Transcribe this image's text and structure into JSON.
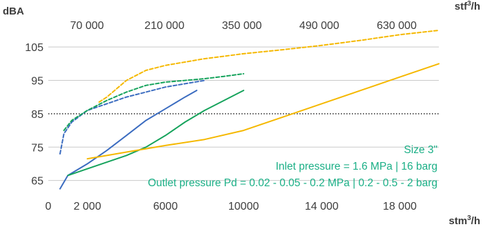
{
  "chart_data": {
    "type": "line",
    "title": "",
    "y_unit": "dBA",
    "x_unit": "stm",
    "x_unit_sup": "3",
    "x_unit_suffix": "/h",
    "x2_unit": "stf",
    "x2_unit_sup": "3",
    "x2_unit_suffix": "/h",
    "xlim": [
      0,
      20000
    ],
    "ylim": [
      61,
      110
    ],
    "x_ticks": [
      0,
      2000,
      6000,
      10000,
      14000,
      18000
    ],
    "x_tick_labels": [
      "0",
      "2 000",
      "6000",
      "10000",
      "14 000",
      "18 000"
    ],
    "y_ticks": [
      65,
      75,
      85,
      95,
      105
    ],
    "y_tick_labels": [
      "65",
      "75",
      "85",
      "95",
      "105"
    ],
    "x2_ticks": [
      70000,
      210000,
      350000,
      490000,
      630000
    ],
    "x2_tick_labels": [
      "70 000",
      "210 000",
      "350 000",
      "490 000",
      "630 000"
    ],
    "x2_per_x": 35.31,
    "grid": "horizontal",
    "reference_line": {
      "y": 85,
      "style": "dotted",
      "color": "#111111"
    },
    "series": [
      {
        "color": "#3b6cc0",
        "dash": false,
        "points": [
          [
            600,
            62.5
          ],
          [
            1000,
            66.5
          ],
          [
            2000,
            70
          ],
          [
            3000,
            74
          ],
          [
            4000,
            78.5
          ],
          [
            5000,
            83
          ],
          [
            6000,
            86.5
          ],
          [
            7000,
            90
          ],
          [
            7600,
            92
          ]
        ]
      },
      {
        "color": "#16a35c",
        "dash": false,
        "points": [
          [
            1000,
            66.5
          ],
          [
            2000,
            68.5
          ],
          [
            3000,
            70.5
          ],
          [
            4000,
            72.5
          ],
          [
            5000,
            75
          ],
          [
            6000,
            78.5
          ],
          [
            7000,
            82.5
          ],
          [
            8000,
            86
          ],
          [
            9000,
            89
          ],
          [
            10000,
            92
          ]
        ]
      },
      {
        "color": "#f5b800",
        "dash": false,
        "points": [
          [
            2000,
            71.5
          ],
          [
            3000,
            72.5
          ],
          [
            4000,
            73.5
          ],
          [
            6000,
            75.5
          ],
          [
            8000,
            77.3
          ],
          [
            10000,
            80
          ],
          [
            12000,
            84
          ],
          [
            14000,
            88
          ],
          [
            16000,
            92
          ],
          [
            18000,
            96
          ],
          [
            20000,
            100
          ]
        ]
      },
      {
        "color": "#3b6cc0",
        "dash": true,
        "points": [
          [
            600,
            73
          ],
          [
            800,
            79
          ],
          [
            1200,
            82.5
          ],
          [
            2000,
            86
          ],
          [
            3000,
            88
          ],
          [
            4000,
            90
          ],
          [
            5000,
            91.5
          ],
          [
            6000,
            93
          ],
          [
            7000,
            94
          ],
          [
            8000,
            95
          ]
        ]
      },
      {
        "color": "#16a35c",
        "dash": true,
        "points": [
          [
            800,
            80
          ],
          [
            1200,
            83
          ],
          [
            2000,
            86
          ],
          [
            3000,
            89
          ],
          [
            4000,
            91.5
          ],
          [
            5000,
            93.5
          ],
          [
            6000,
            94.5
          ],
          [
            7000,
            95
          ],
          [
            8000,
            95.5
          ],
          [
            9000,
            96.2
          ],
          [
            10000,
            97
          ]
        ]
      },
      {
        "color": "#f5b800",
        "dash": true,
        "points": [
          [
            2600,
            88.5
          ],
          [
            3000,
            90
          ],
          [
            4000,
            95
          ],
          [
            5000,
            98
          ],
          [
            6000,
            99.5
          ],
          [
            8000,
            101.5
          ],
          [
            10000,
            103
          ],
          [
            12000,
            104.2
          ],
          [
            14000,
            105.5
          ],
          [
            16000,
            107
          ],
          [
            18000,
            108.7
          ],
          [
            20000,
            110
          ]
        ]
      }
    ],
    "annotations": [
      "Size 3\"",
      "Inlet pressure = 1.6 MPa | 16 barg",
      "Outlet pressure Pd = 0.02 - 0.05 - 0.2 MPa | 0.2 - 0.5 - 2 barg"
    ],
    "colors": {
      "grid": "#c9c9c9",
      "text": "#3d3d3d",
      "annotation": "#1aaf86"
    }
  }
}
